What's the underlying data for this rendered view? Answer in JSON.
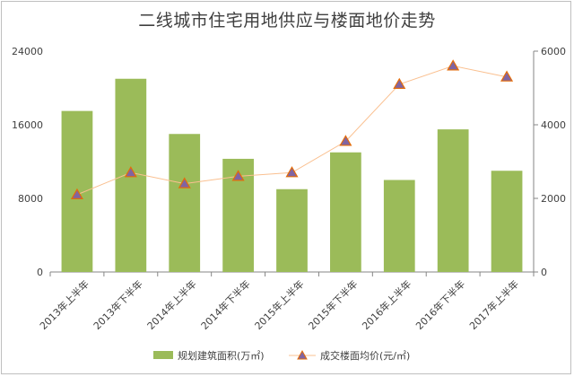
{
  "chart_data": {
    "type": "bar",
    "title": "二线城市住宅用地供应与楼面地价走势",
    "categories": [
      "2013年上半年",
      "2013年下半年",
      "2014年上半年",
      "2014年下半年",
      "2015年上半年",
      "2015年下半年",
      "2016年上半年",
      "2016年下半年",
      "2017年上半年"
    ],
    "series": [
      {
        "name": "规划建筑面积(万㎡)",
        "type": "bar",
        "axis": "left",
        "color": "#9bbb59",
        "values": [
          17500,
          21000,
          15000,
          12300,
          9000,
          13000,
          10000,
          15500,
          11000
        ]
      },
      {
        "name": "成交楼面均价(元/㎡)",
        "type": "line",
        "axis": "right",
        "color": "#fac090",
        "marker_color": "#8064a2",
        "marker_edge": "#e46c0a",
        "values": [
          2100,
          2700,
          2400,
          2600,
          2700,
          3550,
          5100,
          5600,
          5300
        ]
      }
    ],
    "y_left": {
      "ylim": [
        0,
        24000
      ],
      "ticks": [
        "0",
        "8000",
        "16000",
        "24000"
      ]
    },
    "y_right": {
      "ylim": [
        0,
        6000
      ],
      "ticks": [
        "0",
        "2000",
        "4000",
        "6000"
      ]
    },
    "legend": "bottom",
    "grid": false
  }
}
